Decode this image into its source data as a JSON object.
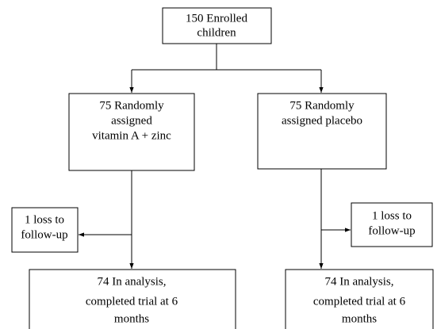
{
  "nodes": [
    {
      "lines": [
        "150 Enrolled",
        "children"
      ]
    },
    {
      "lines": [
        "75 Randomly",
        "assigned",
        "vitamin A + zinc"
      ]
    },
    {
      "lines": [
        "75 Randomly",
        "assigned placebo"
      ]
    },
    {
      "lines": [
        "1 loss to",
        "follow-up"
      ]
    },
    {
      "lines": [
        "1 loss to",
        "follow-up"
      ]
    },
    {
      "lines": [
        "74 In analysis,",
        "completed trial at 6",
        "months"
      ]
    },
    {
      "lines": [
        "74 In analysis,",
        "completed trial at 6",
        "months"
      ]
    }
  ]
}
